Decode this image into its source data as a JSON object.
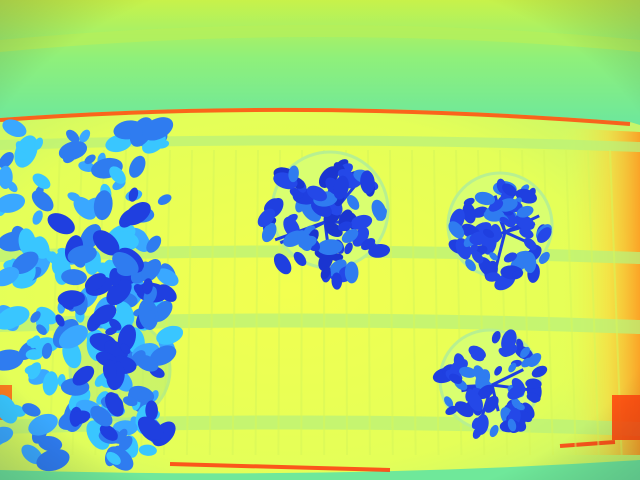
{
  "image": {
    "kind": "false-color thermal image, top-down view",
    "palette": {
      "background": "#6fe89a",
      "bench": "#e8ff55",
      "bench_edge": "#c8f060",
      "hot_edge": "#ff4a10",
      "leaf_dark": "#1f3fe0",
      "leaf_mid": "#2f7cf0",
      "leaf_light": "#39c6ff",
      "pot_ring": "#c6f39a"
    },
    "plants": [
      {
        "name": "plant-left-cluster",
        "pot": false
      },
      {
        "name": "plant-center-top",
        "pot": true
      },
      {
        "name": "plant-right-top",
        "pot": true
      },
      {
        "name": "plant-right-bottom",
        "pot": true
      }
    ]
  }
}
